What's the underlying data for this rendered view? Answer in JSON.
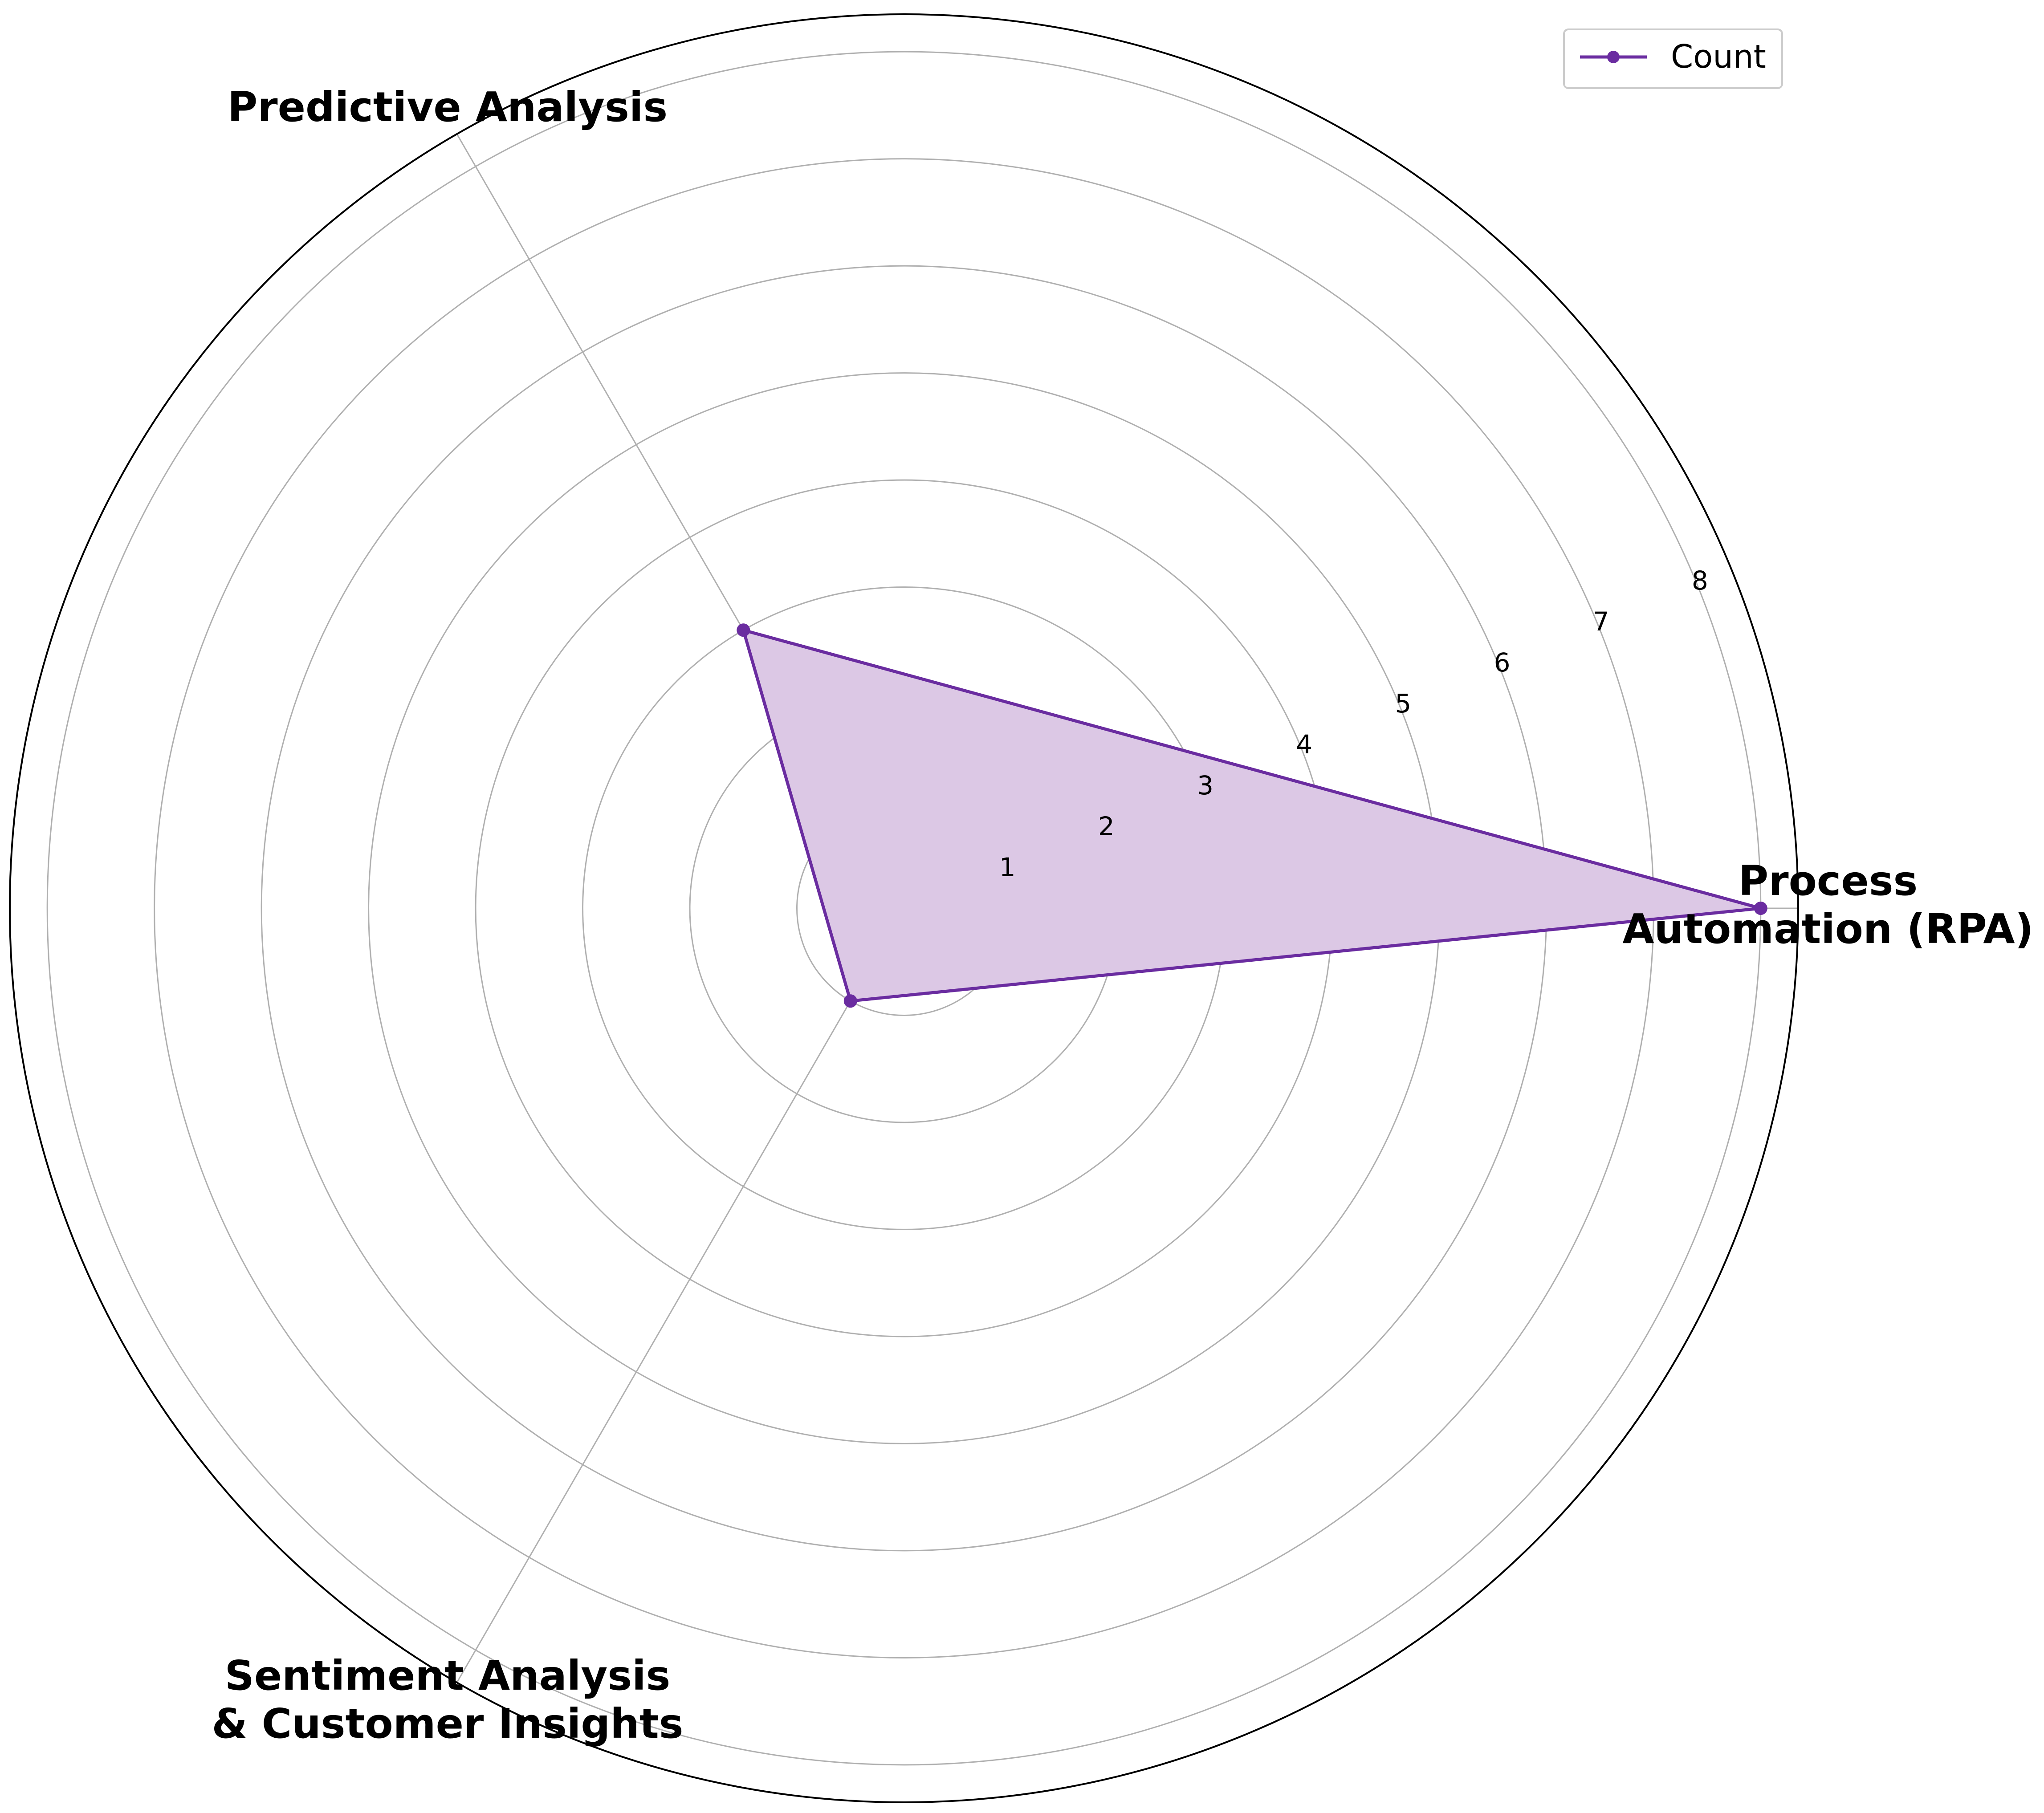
{
  "chart_data": {
    "type": "radar",
    "categories": [
      [
        "Process",
        "Automation (RPA)"
      ],
      [
        "Predictive Analysis"
      ],
      [
        "Sentiment Analysis",
        "& Customer Insights"
      ]
    ],
    "series": [
      {
        "name": "Count",
        "values": [
          8,
          3,
          1
        ],
        "color": "#6a2ca0",
        "fill": "#dcc8e5"
      }
    ],
    "radial_ticks": [
      "1",
      "2",
      "3",
      "4",
      "5",
      "6",
      "7",
      "8"
    ],
    "rlim": [
      0,
      8.35
    ],
    "grid": true,
    "legend_position": "top-right"
  }
}
